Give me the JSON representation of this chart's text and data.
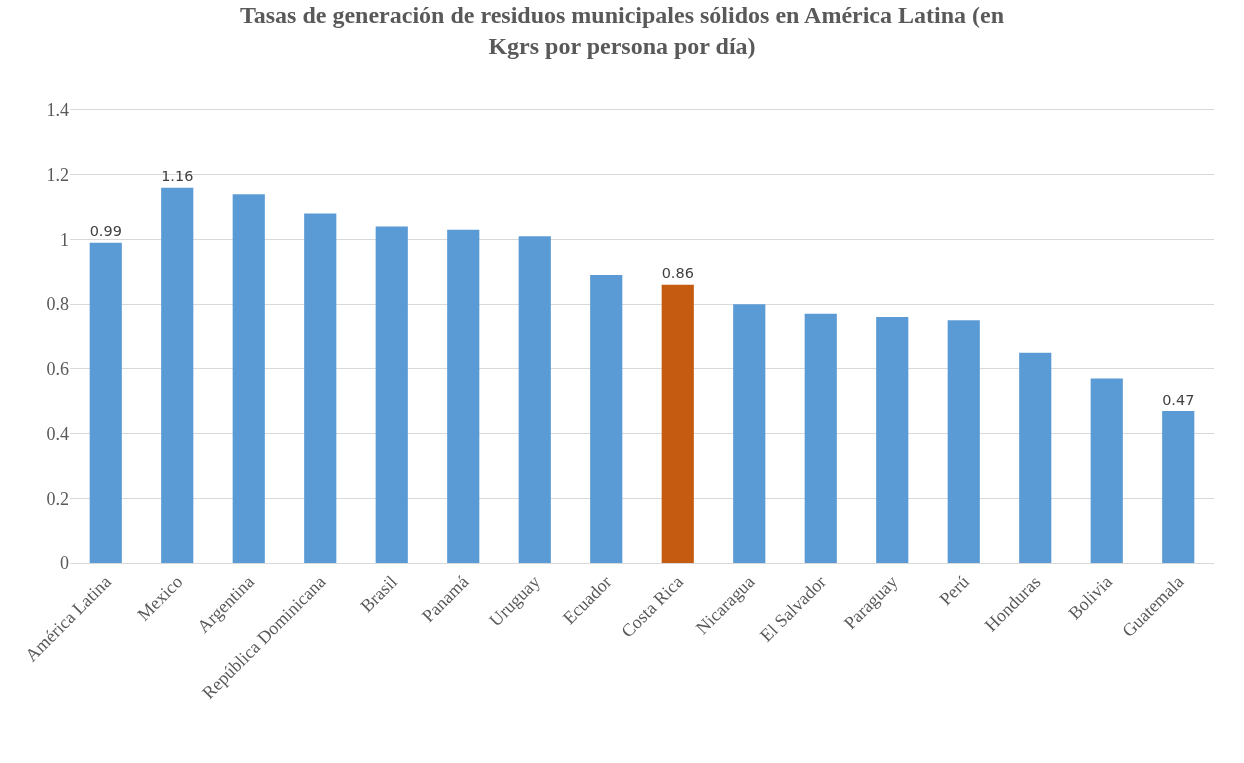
{
  "chart_data": {
    "type": "bar",
    "title": "Tasas de generación de residuos municipales sólidos en América Latina (en Kgrs por persona por día)",
    "categories": [
      "América Latina",
      "Mexico",
      "Argentina",
      "República Dominicana",
      "Brasil",
      "Panamá",
      "Uruguay",
      "Ecuador",
      "Costa Rica",
      "Nicaragua",
      "El Salvador",
      "Paraguay",
      "Perú",
      "Honduras",
      "Bolivia",
      "Guatemala"
    ],
    "values": [
      0.99,
      1.16,
      1.14,
      1.08,
      1.04,
      1.03,
      1.01,
      0.89,
      0.86,
      0.8,
      0.77,
      0.76,
      0.75,
      0.65,
      0.57,
      0.47
    ],
    "value_labels": [
      "0.99",
      "1.16",
      null,
      null,
      null,
      null,
      null,
      null,
      "0.86",
      null,
      null,
      null,
      null,
      null,
      null,
      "0.47"
    ],
    "colors": [
      "#5b9bd5",
      "#5b9bd5",
      "#5b9bd5",
      "#5b9bd5",
      "#5b9bd5",
      "#5b9bd5",
      "#5b9bd5",
      "#5b9bd5",
      "#c55a11",
      "#5b9bd5",
      "#5b9bd5",
      "#5b9bd5",
      "#5b9bd5",
      "#5b9bd5",
      "#5b9bd5",
      "#5b9bd5"
    ],
    "ylim": [
      0,
      1.4
    ],
    "yticks": [
      0,
      0.2,
      0.4,
      0.6,
      0.8,
      1,
      1.2,
      1.4
    ],
    "grid": "y"
  }
}
